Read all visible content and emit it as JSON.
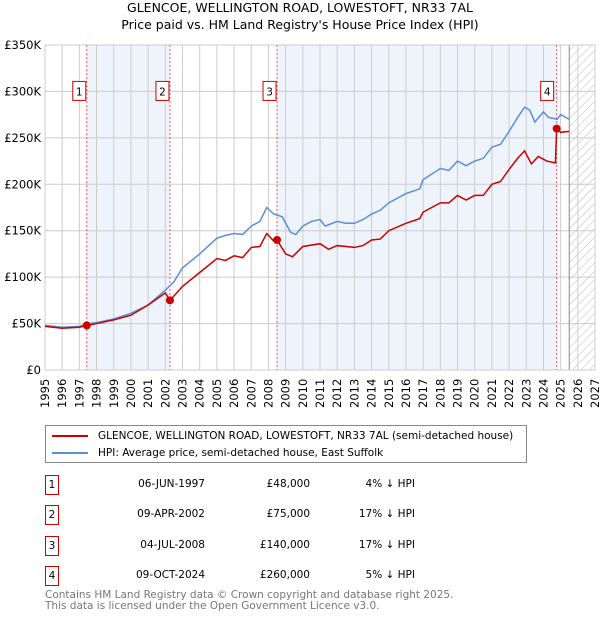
{
  "chart_data": {
    "type": "line",
    "title": "GLENCOE, WELLINGTON ROAD, LOWESTOFT, NR33 7AL",
    "subtitle": "Price paid vs. HM Land Registry's House Price Index (HPI)",
    "xlim": [
      1995,
      2027
    ],
    "ylim": [
      0,
      350000
    ],
    "yticks": [
      {
        "v": 0,
        "label": "£0"
      },
      {
        "v": 50000,
        "label": "£50K"
      },
      {
        "v": 100000,
        "label": "£100K"
      },
      {
        "v": 150000,
        "label": "£150K"
      },
      {
        "v": 200000,
        "label": "£200K"
      },
      {
        "v": 250000,
        "label": "£250K"
      },
      {
        "v": 300000,
        "label": "£300K"
      },
      {
        "v": 350000,
        "label": "£350K"
      }
    ],
    "xticks": [
      "1995",
      "1996",
      "1997",
      "1998",
      "1999",
      "2000",
      "2001",
      "2002",
      "2003",
      "2004",
      "2005",
      "2006",
      "2007",
      "2008",
      "2009",
      "2010",
      "2011",
      "2012",
      "2013",
      "2014",
      "2015",
      "2016",
      "2017",
      "2018",
      "2019",
      "2020",
      "2021",
      "2022",
      "2023",
      "2024",
      "2025",
      "2026",
      "2027"
    ],
    "grid": true,
    "forecast_start": 2025.5,
    "series": [
      {
        "name": "GLENCOE, WELLINGTON ROAD, LOWESTOFT, NR33 7AL (semi-detached house)",
        "color": "#cc0000",
        "x": [
          1995,
          1996,
          1997,
          1997.43,
          1998,
          1999,
          2000,
          2001,
          2002,
          2002.27,
          2003,
          2004,
          2005,
          2005.5,
          2006,
          2006.5,
          2007,
          2007.5,
          2007.9,
          2008.3,
          2008.5,
          2009,
          2009.4,
          2010,
          2011,
          2011.5,
          2012,
          2013,
          2013.5,
          2014,
          2014.5,
          2015,
          2016,
          2016.8,
          2017,
          2018,
          2018.5,
          2019,
          2019.5,
          2020,
          2020.5,
          2021,
          2021.5,
          2022,
          2022.5,
          2022.9,
          2023.3,
          2023.7,
          2024.2,
          2024.7,
          2024.77,
          2025,
          2025.5
        ],
        "y": [
          47000,
          45000,
          46000,
          48000,
          50000,
          54000,
          59000,
          70000,
          83000,
          75000,
          90000,
          105000,
          120000,
          118000,
          123000,
          121000,
          132000,
          133000,
          147000,
          139000,
          140000,
          125000,
          122000,
          133000,
          136000,
          130000,
          134000,
          132000,
          134000,
          140000,
          141000,
          150000,
          158000,
          163000,
          170000,
          180000,
          180000,
          188000,
          183000,
          188000,
          188000,
          200000,
          203000,
          216000,
          228000,
          236000,
          222000,
          230000,
          225000,
          223000,
          260000,
          256000,
          257000
        ]
      },
      {
        "name": "HPI: Average price, semi-detached house, East Suffolk",
        "color": "#5b8fd6",
        "x": [
          1995,
          1996,
          1997,
          1997.5,
          1998,
          1999,
          2000,
          2001,
          2002,
          2002.5,
          2003,
          2004,
          2005,
          2005.5,
          2006,
          2006.5,
          2007,
          2007.5,
          2007.9,
          2008.3,
          2008.8,
          2009.3,
          2009.6,
          2010,
          2010.5,
          2011,
          2011.3,
          2012,
          2012.5,
          2013,
          2013.5,
          2014,
          2014.5,
          2015,
          2016,
          2016.8,
          2017,
          2018,
          2018.5,
          2019,
          2019.5,
          2020,
          2020.5,
          2021,
          2021.5,
          2022,
          2022.5,
          2022.9,
          2023.2,
          2023.5,
          2024,
          2024.3,
          2024.8,
          2025,
          2025.5
        ],
        "y": [
          48000,
          46000,
          47000,
          50000,
          51000,
          55000,
          61000,
          70000,
          86000,
          95000,
          110000,
          125000,
          142000,
          145000,
          147000,
          146000,
          155000,
          160000,
          175000,
          168000,
          165000,
          148000,
          146000,
          155000,
          160000,
          162000,
          155000,
          160000,
          158000,
          158000,
          162000,
          168000,
          172000,
          180000,
          190000,
          195000,
          205000,
          217000,
          215000,
          225000,
          220000,
          225000,
          228000,
          240000,
          243000,
          257000,
          272000,
          283000,
          280000,
          267000,
          278000,
          272000,
          270000,
          275000,
          270000
        ]
      }
    ],
    "sales": [
      {
        "n": "1",
        "x": 1997.43,
        "y": 48000,
        "date": "06-JUN-1997",
        "price": "£48,000",
        "diff": "4% ↓ HPI"
      },
      {
        "n": "2",
        "x": 2002.27,
        "y": 75000,
        "date": "09-APR-2002",
        "price": "£75,000",
        "diff": "17% ↓ HPI"
      },
      {
        "n": "3",
        "x": 2008.5,
        "y": 140000,
        "date": "04-JUL-2008",
        "price": "£140,000",
        "diff": "17% ↓ HPI"
      },
      {
        "n": "4",
        "x": 2024.77,
        "y": 260000,
        "date": "09-OCT-2024",
        "price": "£260,000",
        "diff": "5% ↓ HPI"
      }
    ]
  },
  "footer": {
    "line1": "Contains HM Land Registry data © Crown copyright and database right 2025.",
    "line2": "This data is licensed under the Open Government Licence v3.0."
  }
}
